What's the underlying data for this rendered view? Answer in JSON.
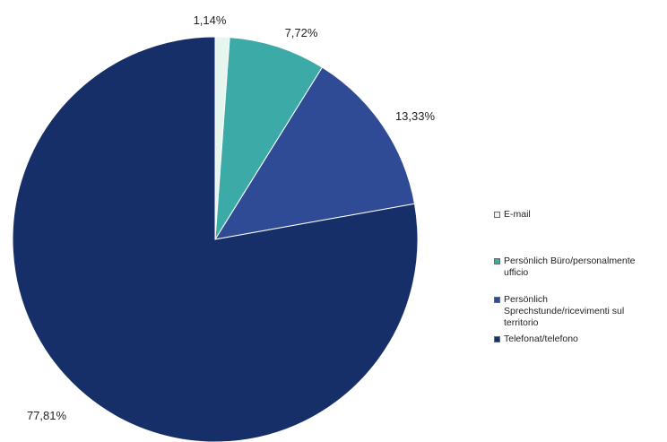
{
  "chart_data": {
    "type": "pie",
    "start_angle_deg": 0,
    "direction": "clockwise",
    "legend_position": "right",
    "slices": [
      {
        "name": "E-mail",
        "value": 1.14,
        "label": "1,14%",
        "color": "#e6f6ef"
      },
      {
        "name": "Persönlich Büro/personalmente ufficio",
        "value": 7.72,
        "label": "7,72%",
        "color": "#3caaa6"
      },
      {
        "name": "Persönlich Sprechstunde/ricevimenti sul territorio",
        "value": 13.33,
        "label": "13,33%",
        "color": "#2f4b96"
      },
      {
        "name": "Telefonat/telefono",
        "value": 77.81,
        "label": "77,81%",
        "color": "#172f68"
      }
    ]
  },
  "legend": {
    "items": [
      {
        "lines": [
          "E-mail"
        ]
      },
      {
        "lines": [
          "Persönlich Büro/personalmente",
          "ufficio"
        ]
      },
      {
        "lines": [
          "Persönlich",
          "Sprechstunde/ricevimenti sul",
          "territorio"
        ]
      },
      {
        "lines": [
          "Telefonat/telefono"
        ]
      }
    ]
  }
}
